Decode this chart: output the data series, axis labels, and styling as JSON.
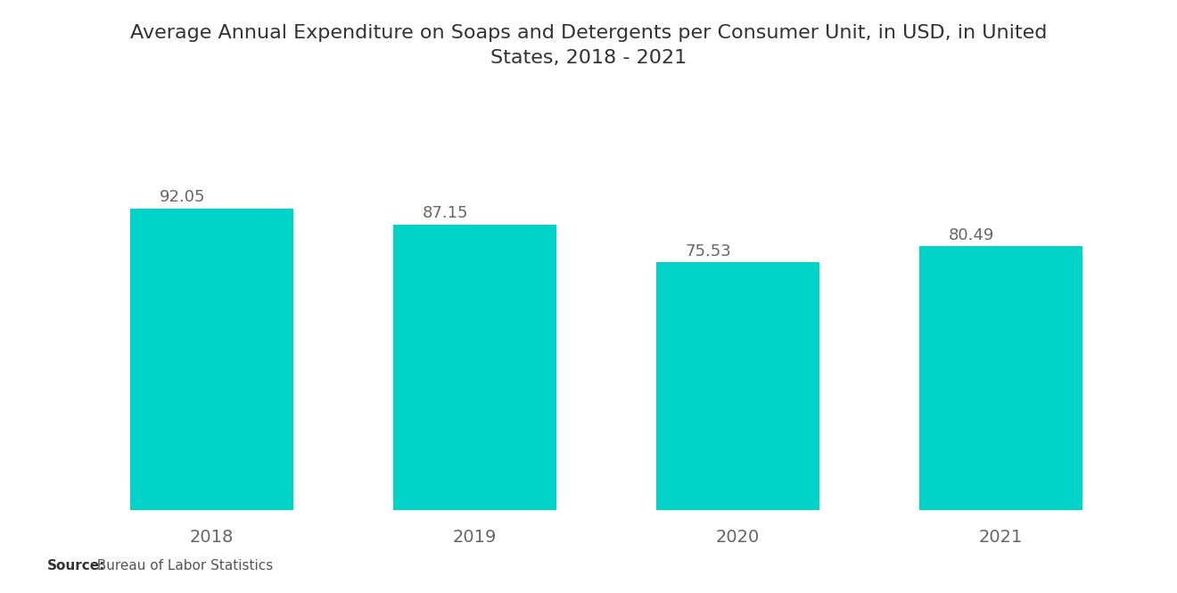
{
  "title_line1": "Average Annual Expenditure on Soaps and Detergents per Consumer Unit, in USD, in United",
  "title_line2": "States, 2018 - 2021",
  "categories": [
    "2018",
    "2019",
    "2020",
    "2021"
  ],
  "values": [
    92.05,
    87.15,
    75.53,
    80.49
  ],
  "bar_color": "#00D4C8",
  "background_color": "#ffffff",
  "title_fontsize": 16,
  "label_fontsize": 14,
  "value_fontsize": 13,
  "source_bold": "Source:",
  "source_normal": "  Bureau of Labor Statistics",
  "source_fontsize": 11,
  "ylim": [
    0,
    105
  ],
  "bar_width": 0.62
}
